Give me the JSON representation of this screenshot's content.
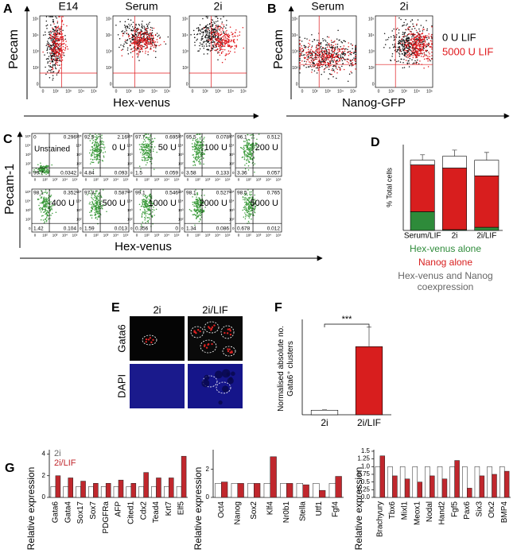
{
  "panel_labels": [
    "A",
    "B",
    "C",
    "D",
    "E",
    "F",
    "G"
  ],
  "flow_ticks": {
    "x": [
      "0",
      "10²",
      "10³",
      "10⁴",
      "10⁵"
    ],
    "y": [
      "10⁵",
      "10⁴",
      "10³",
      "10²",
      "0"
    ]
  },
  "panel_a": {
    "y_label": "Pecam",
    "x_label": "Hex-venus",
    "plots": [
      "E14",
      "Serum",
      "2i"
    ]
  },
  "panel_b": {
    "y_label": "Pecam",
    "x_label": "Nanog-GFP",
    "plots": [
      "Serum",
      "2i"
    ],
    "legend": [
      {
        "name": "0 U LIF",
        "color": "#000000"
      },
      {
        "name": "5000 U LIF",
        "color": "#e0181c"
      }
    ]
  },
  "panel_c": {
    "y_label": "Pecam-1",
    "x_label": "Hex-venus",
    "plots": [
      {
        "label": "Unstained",
        "quadrants": [
          0,
          0.296,
          99.7,
          0.0342
        ]
      },
      {
        "label": "0 U",
        "quadrants": [
          92.9,
          2.16,
          4.84,
          0.093
        ]
      },
      {
        "label": "50 U",
        "quadrants": [
          97.7,
          0.695,
          1.5,
          0.059
        ]
      },
      {
        "label": "100 U",
        "quadrants": [
          95.5,
          0.078,
          3.58,
          0.133
        ]
      },
      {
        "label": "200 U",
        "quadrants": [
          96.1,
          0.512,
          3.36,
          0.057
        ]
      },
      {
        "label": "400 U",
        "quadrants": [
          98.1,
          0.352,
          1.42,
          0.104
        ]
      },
      {
        "label": "500 U",
        "quadrants": [
          97.8,
          0.587,
          1.59,
          0.013
        ]
      },
      {
        "label": "1000 U",
        "quadrants": [
          99.1,
          0.546,
          0.356,
          0
        ]
      },
      {
        "label": "2000 U",
        "quadrants": [
          98.1,
          0.527,
          1.34,
          0.086
        ]
      },
      {
        "label": "5000 U",
        "quadrants": [
          98.5,
          0.765,
          0.678,
          0.012
        ]
      }
    ]
  },
  "panel_e": {
    "columns": [
      "2i",
      "2i/LIF"
    ],
    "rows": [
      "Gata6",
      "DAPI"
    ]
  },
  "chart_data": [
    {
      "type": "stacked_bar",
      "y_label": "% Total cells",
      "categories": [
        "Serum/LIF",
        "2i",
        "2i/LIF"
      ],
      "series": [
        {
          "name": "Hex-venus alone",
          "color": "#2e8b3a",
          "values": [
            24,
            1,
            4
          ]
        },
        {
          "name": "Nanog alone",
          "color": "#d81e1e",
          "values": [
            60,
            79,
            66
          ]
        },
        {
          "name": "Hex-venus and Nanog coexpression",
          "color": "#ffffff",
          "values": [
            6,
            15,
            20
          ],
          "errors": [
            7,
            8,
            10
          ]
        }
      ],
      "ylim": [
        0,
        110
      ]
    },
    {
      "type": "bar",
      "y_label": "Normalised absolute no. Gata6⁺ clusters",
      "categories": [
        "2i",
        "2i/LIF"
      ],
      "values": [
        100,
        1500
      ],
      "errors": [
        10,
        430
      ],
      "colors": [
        "#ffffff",
        "#d81e1e"
      ],
      "annotation": "***",
      "ylim": [
        0,
        2100
      ]
    },
    {
      "type": "grouped_bar",
      "y_label": "Relative expression",
      "categories": [
        "Gata6",
        "Gata4",
        "Sox17",
        "Sox7",
        "PDGFRa",
        "AFP",
        "Cited1",
        "Cdx2",
        "Tead4",
        "Krt7",
        "Elf5"
      ],
      "series": [
        {
          "name": "2i",
          "color": "#ffffff",
          "values": [
            1,
            1,
            1,
            1,
            1,
            1,
            1,
            1,
            1,
            1,
            1
          ]
        },
        {
          "name": "2i/LIF",
          "color": "#c0272d",
          "values": [
            2.0,
            1.8,
            1.5,
            1.3,
            1.3,
            1.6,
            1.3,
            2.3,
            1.8,
            1.8,
            3.8
          ]
        }
      ],
      "ylim": [
        0,
        4.4
      ],
      "yticks": [
        0,
        2,
        4
      ],
      "legend": "top-left"
    },
    {
      "type": "grouped_bar",
      "y_label": "Relative expression",
      "categories": [
        "Oct4",
        "Nanog",
        "Sox2",
        "Klf4",
        "Nr0b1",
        "Stella",
        "Utf1",
        "Fgf4"
      ],
      "series": [
        {
          "name": "2i",
          "color": "#ffffff",
          "values": [
            1,
            1,
            1,
            1,
            1,
            1,
            1,
            1
          ]
        },
        {
          "name": "2i/LIF",
          "color": "#c0272d",
          "values": [
            1.1,
            1.0,
            1.0,
            2.9,
            1.0,
            0.9,
            0.5,
            1.5
          ]
        }
      ],
      "ylim": [
        0,
        3.4
      ],
      "yticks": [
        0,
        2
      ]
    },
    {
      "type": "grouped_bar",
      "y_label": "Relative expression",
      "categories": [
        "Brachyury",
        "Tbx6",
        "Mixl1",
        "Meox1",
        "Nodal",
        "Hand2",
        "Fgf5",
        "Pax6",
        "Six3",
        "Otx2",
        "BMP4"
      ],
      "series": [
        {
          "name": "2i",
          "color": "#ffffff",
          "values": [
            1,
            1,
            1,
            1,
            1,
            1,
            1,
            1,
            1,
            1,
            1
          ]
        },
        {
          "name": "2i/LIF",
          "color": "#c0272d",
          "values": [
            1.35,
            0.7,
            0.6,
            0.5,
            0.7,
            0.6,
            1.2,
            0.3,
            0.7,
            0.75,
            0.85
          ]
        }
      ],
      "ylim": [
        0,
        1.55
      ],
      "yticks": [
        {
          "value": 0,
          "label": "0.0"
        },
        0.25,
        0.5,
        0.75,
        {
          "value": 1,
          "label": "1.0"
        },
        1.25,
        1.5
      ]
    }
  ]
}
